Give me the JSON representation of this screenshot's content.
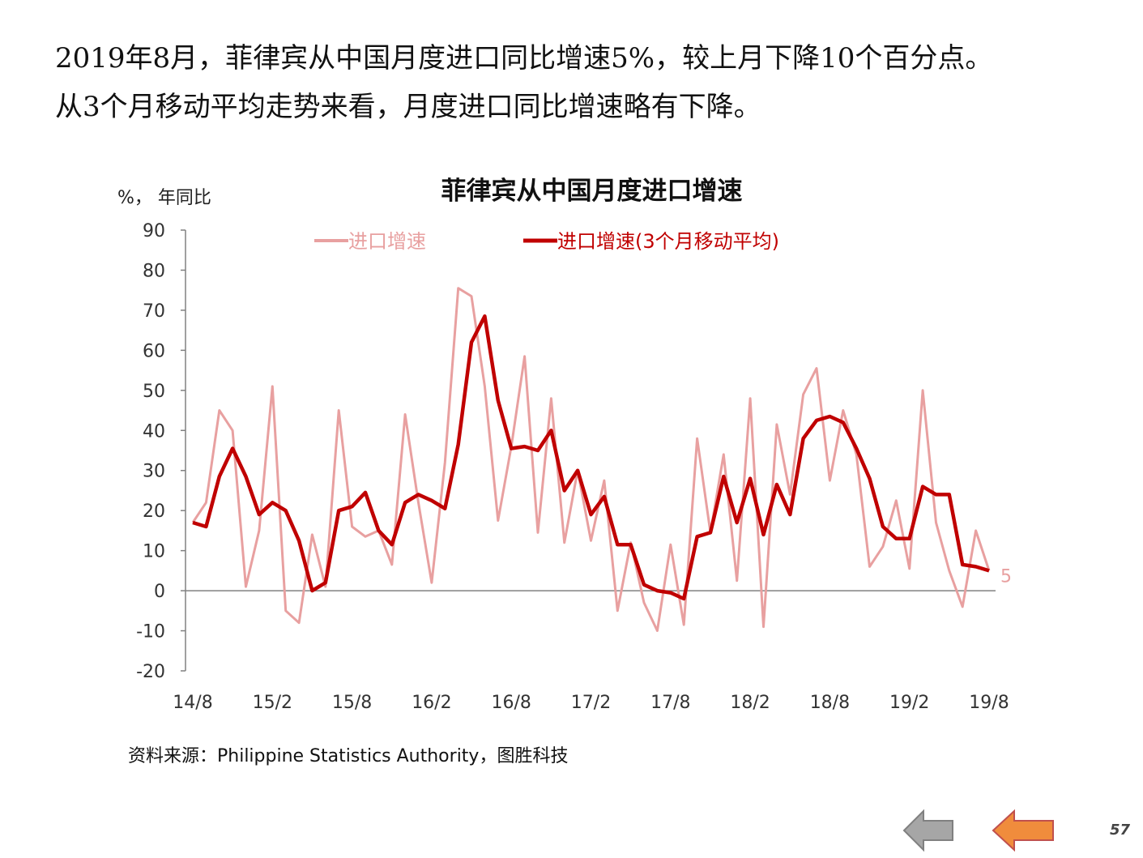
{
  "headline": {
    "line1": "2019年8月，菲律宾从中国月度进口同比增速5%，较上月下降10个百分点。",
    "line2": "从3个月移动平均走势来看，月度进口同比增速略有下降。"
  },
  "unit_label": "%， 年同比",
  "source": "资料来源：Philippine Statistics Authority，图胜科技",
  "page_number": "57",
  "nav": {
    "back_icon": "left-arrow-gray",
    "prev_icon": "left-arrow-orange"
  },
  "colors": {
    "raw": "#e8a0a0",
    "avg": "#c00000",
    "axis": "#808080",
    "back": "#a6a6a6",
    "prev": "#f08c3c"
  },
  "chart_data": {
    "type": "line",
    "title": "菲律宾从中国月度进口增速",
    "ylim": [
      -20,
      90
    ],
    "yticks": [
      "90",
      "80",
      "70",
      "60",
      "50",
      "40",
      "30",
      "20",
      "10",
      "0",
      "-10",
      "-20"
    ],
    "x_tick_labels": [
      "14/8",
      "15/2",
      "15/8",
      "16/2",
      "16/8",
      "17/2",
      "17/8",
      "18/2",
      "18/8",
      "19/2",
      "19/8"
    ],
    "last_value_label": "5",
    "series": [
      {
        "name": "进口增速",
        "values": [
          17,
          22,
          45,
          40,
          1,
          15,
          51,
          -5,
          -8,
          14,
          1,
          45,
          16,
          13.5,
          15,
          6.5,
          44,
          22,
          2,
          32,
          75.5,
          73.5,
          51,
          17.5,
          36,
          58.5,
          14.5,
          48,
          12,
          30,
          12.5,
          27.5,
          -5,
          12,
          -3,
          -10,
          11.5,
          -8.5,
          38,
          14.5,
          34,
          2.5,
          48,
          -9,
          41.5,
          24,
          49,
          55.5,
          27.5,
          45,
          34,
          6,
          11,
          22.5,
          5.5,
          50,
          17,
          5,
          -4,
          15,
          5
        ]
      },
      {
        "name": "进口增速(3个月移动平均)",
        "values": [
          17,
          16,
          28.5,
          35.5,
          28.5,
          19,
          22,
          20,
          12.5,
          0,
          2,
          20,
          21,
          24.5,
          15,
          11.5,
          22,
          24,
          22.5,
          20.5,
          36.5,
          62,
          68.5,
          47.5,
          35.5,
          36,
          35,
          40,
          25,
          30,
          19,
          23.5,
          11.5,
          11.5,
          1.5,
          0,
          -0.5,
          -2,
          13.5,
          14.5,
          28.5,
          17,
          28,
          14,
          26.5,
          19,
          38,
          42.5,
          43.5,
          42,
          35.5,
          28,
          16,
          13,
          13,
          26,
          24,
          24,
          6.5,
          6,
          5
        ]
      }
    ]
  }
}
